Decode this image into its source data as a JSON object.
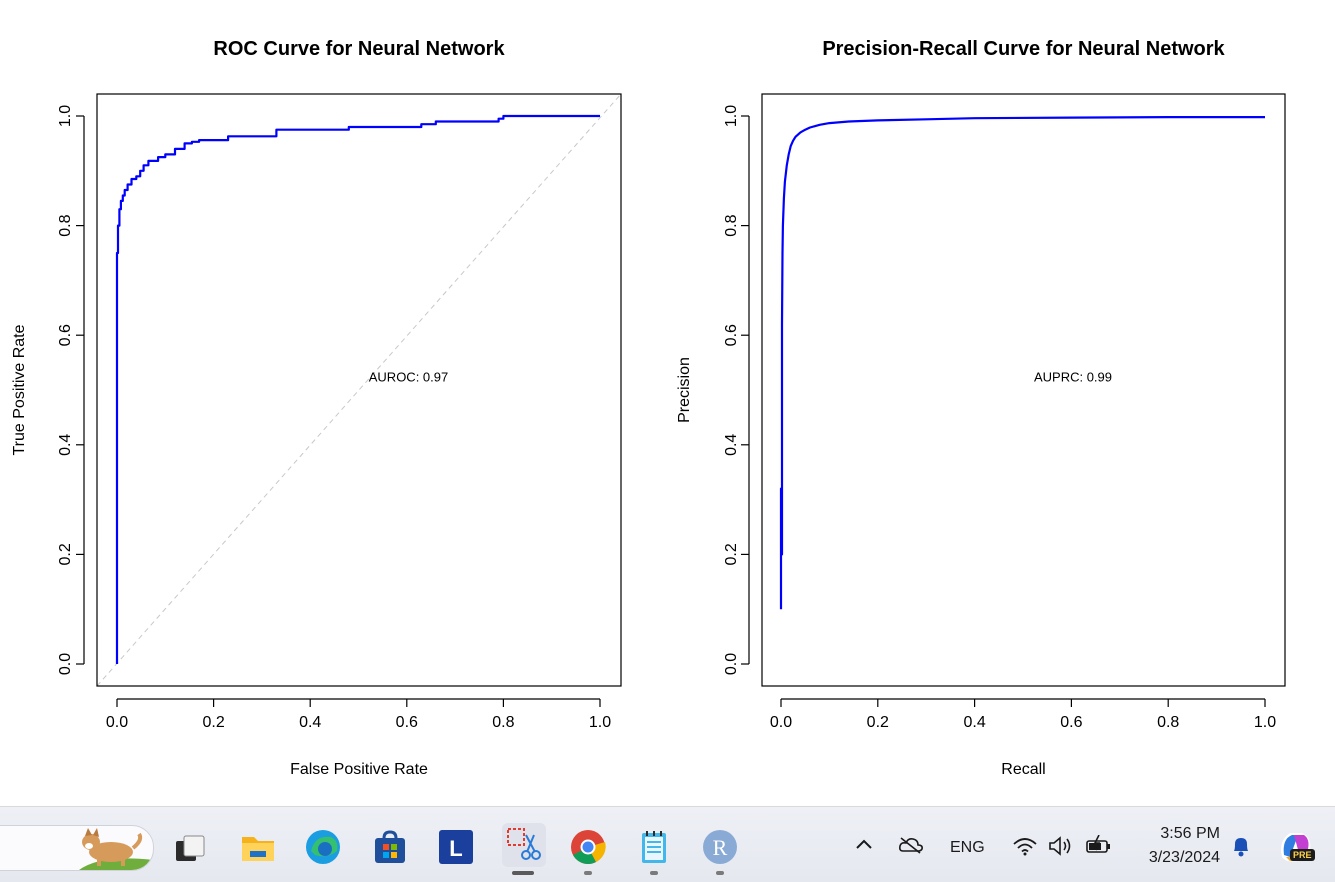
{
  "chart_data": [
    {
      "type": "line",
      "title": "ROC Curve for Neural Network",
      "xlabel": "False Positive Rate",
      "ylabel": "True Positive Rate",
      "xlim": [
        0,
        1
      ],
      "ylim": [
        0,
        1
      ],
      "xticks": [
        "0.0",
        "0.2",
        "0.4",
        "0.6",
        "0.8",
        "1.0"
      ],
      "yticks": [
        "0.0",
        "0.2",
        "0.4",
        "0.6",
        "0.8",
        "1.0"
      ],
      "annotation": "AUROC: 0.97",
      "annotation_pos": [
        0.5,
        0.525
      ],
      "reference_line": true,
      "series": [
        {
          "color": "#0000ff",
          "x": [
            0,
            0,
            0.002,
            0.002,
            0.005,
            0.005,
            0.008,
            0.008,
            0.012,
            0.012,
            0.016,
            0.016,
            0.022,
            0.022,
            0.03,
            0.03,
            0.04,
            0.04,
            0.048,
            0.048,
            0.055,
            0.055,
            0.065,
            0.065,
            0.085,
            0.085,
            0.1,
            0.1,
            0.12,
            0.12,
            0.14,
            0.14,
            0.155,
            0.155,
            0.17,
            0.17,
            0.23,
            0.23,
            0.33,
            0.33,
            0.48,
            0.48,
            0.63,
            0.63,
            0.66,
            0.66,
            0.79,
            0.79,
            0.8,
            0.8,
            1.0
          ],
          "y": [
            0,
            0.75,
            0.75,
            0.8,
            0.8,
            0.83,
            0.83,
            0.845,
            0.845,
            0.855,
            0.855,
            0.865,
            0.865,
            0.875,
            0.875,
            0.885,
            0.885,
            0.89,
            0.89,
            0.9,
            0.9,
            0.91,
            0.91,
            0.918,
            0.918,
            0.925,
            0.925,
            0.93,
            0.93,
            0.94,
            0.94,
            0.95,
            0.95,
            0.953,
            0.953,
            0.956,
            0.956,
            0.963,
            0.963,
            0.975,
            0.975,
            0.98,
            0.98,
            0.985,
            0.985,
            0.99,
            0.99,
            0.995,
            0.995,
            1.0,
            1.0
          ]
        }
      ]
    },
    {
      "type": "line",
      "title": "Precision-Recall Curve for Neural Network",
      "xlabel": "Recall",
      "ylabel": "Precision",
      "xlim": [
        0,
        1
      ],
      "ylim": [
        0,
        1
      ],
      "xticks": [
        "0.0",
        "0.2",
        "0.4",
        "0.6",
        "0.8",
        "1.0"
      ],
      "yticks": [
        "0.0",
        "0.2",
        "0.4",
        "0.6",
        "0.8",
        "1.0"
      ],
      "annotation": "AUPRC: 0.99",
      "annotation_pos": [
        0.5,
        0.525
      ],
      "reference_line": false,
      "series": [
        {
          "color": "#0000ff",
          "x": [
            0,
            0,
            0.002,
            0.002,
            0.003,
            0.004,
            0.006,
            0.008,
            0.012,
            0.016,
            0.02,
            0.025,
            0.03,
            0.04,
            0.05,
            0.06,
            0.08,
            0.1,
            0.14,
            0.2,
            0.3,
            0.4,
            0.6,
            0.8,
            1.0
          ],
          "y": [
            0.1,
            0.32,
            0.2,
            0.62,
            0.75,
            0.8,
            0.85,
            0.88,
            0.91,
            0.93,
            0.945,
            0.955,
            0.962,
            0.97,
            0.975,
            0.979,
            0.984,
            0.987,
            0.99,
            0.992,
            0.994,
            0.996,
            0.997,
            0.998,
            0.998
          ]
        }
      ]
    }
  ],
  "taskbar": {
    "tray_language": "ENG",
    "time": "3:56 PM",
    "date": "3/23/2024",
    "apps": [
      "task-view",
      "file-explorer",
      "edge",
      "microsoft-store",
      "l-app",
      "snipping-tool",
      "chrome",
      "notepad",
      "r-gui"
    ],
    "badge": "PRE"
  }
}
